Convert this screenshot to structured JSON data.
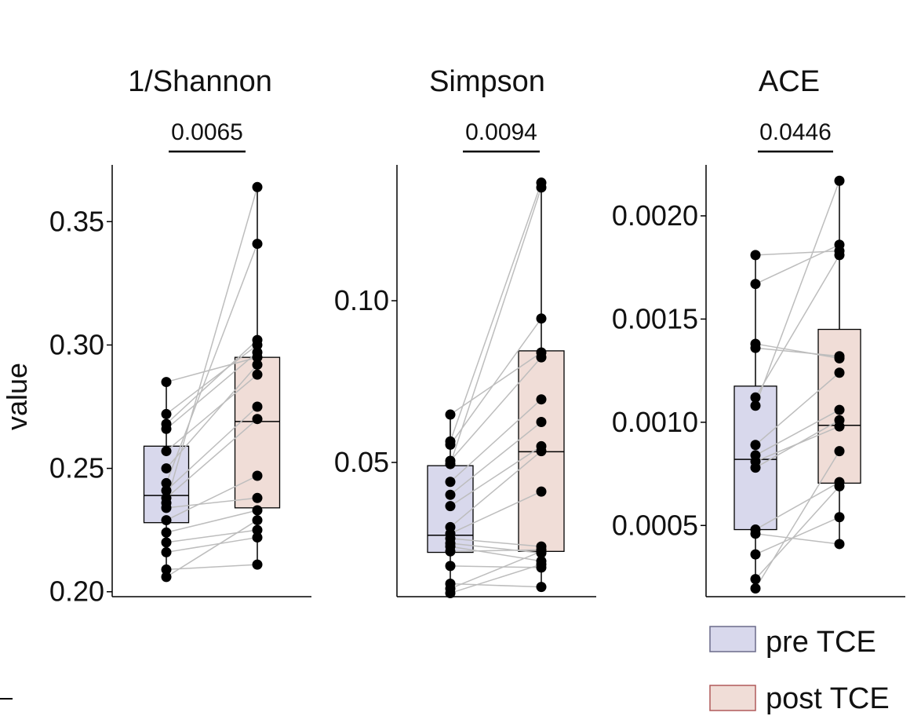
{
  "chart_data": {
    "type": "box",
    "ylabel": "value",
    "legend": {
      "placement": "bottom-right",
      "entries": [
        {
          "label": "pre TCE",
          "fill": "#d8d8ec",
          "stroke": "#6a6a8a"
        },
        {
          "label": "post TCE",
          "fill": "#f0ddd7",
          "stroke": "#b05a5a"
        }
      ]
    },
    "colors": {
      "pre_fill": "#d8d8ec",
      "post_fill": "#f0ddd7",
      "points": "#000000",
      "pair_lines": "#bdbdbd"
    },
    "panels": [
      {
        "id": "shannon",
        "title": "1/Shannon",
        "p_value": "0.0065",
        "ylim": [
          0.198,
          0.373
        ],
        "ticks": [
          0.2,
          0.25,
          0.3,
          0.35
        ],
        "tick_labels": [
          "0.20",
          "0.25",
          "0.30",
          "0.35"
        ],
        "groups": {
          "pre": {
            "min": 0.206,
            "q1": 0.228,
            "median": 0.239,
            "q3": 0.259,
            "max": 0.285
          },
          "post": {
            "min": 0.211,
            "q1": 0.234,
            "median": 0.269,
            "q3": 0.295,
            "max": 0.364
          }
        },
        "pairs": [
          [
            0.285,
            0.295
          ],
          [
            0.272,
            0.3
          ],
          [
            0.268,
            0.302
          ],
          [
            0.266,
            0.297
          ],
          [
            0.257,
            0.288
          ],
          [
            0.25,
            0.292
          ],
          [
            0.244,
            0.341
          ],
          [
            0.241,
            0.275
          ],
          [
            0.238,
            0.27
          ],
          [
            0.236,
            0.364
          ],
          [
            0.234,
            0.238
          ],
          [
            0.229,
            0.247
          ],
          [
            0.224,
            0.233
          ],
          [
            0.22,
            0.225
          ],
          [
            0.216,
            0.222
          ],
          [
            0.209,
            0.211
          ],
          [
            0.206,
            0.229
          ]
        ]
      },
      {
        "id": "simpson",
        "title": "Simpson",
        "p_value": "0.0094",
        "ylim": [
          0.0085,
          0.142
        ],
        "ticks": [
          0.05,
          0.1
        ],
        "tick_labels": [
          "0.05",
          "0.10"
        ],
        "groups": {
          "pre": {
            "min": 0.0096,
            "q1": 0.0222,
            "median": 0.0275,
            "q3": 0.049,
            "max": 0.0648
          },
          "post": {
            "min": 0.0115,
            "q1": 0.0225,
            "median": 0.0533,
            "q3": 0.0845,
            "max": 0.1365
          }
        },
        "pairs": [
          [
            0.0648,
            0.084
          ],
          [
            0.0565,
            0.1365
          ],
          [
            0.0555,
            0.0945
          ],
          [
            0.0505,
            0.0825
          ],
          [
            0.0495,
            0.135
          ],
          [
            0.044,
            0.0695
          ],
          [
            0.04,
            0.0625
          ],
          [
            0.0365,
            0.055
          ],
          [
            0.03,
            0.0535
          ],
          [
            0.028,
            0.041
          ],
          [
            0.0265,
            0.024
          ],
          [
            0.025,
            0.022
          ],
          [
            0.024,
            0.0195
          ],
          [
            0.0225,
            0.023
          ],
          [
            0.018,
            0.0175
          ],
          [
            0.0125,
            0.0115
          ],
          [
            0.011,
            0.0225
          ],
          [
            0.0096,
            0.0185
          ]
        ]
      },
      {
        "id": "ace",
        "title": "ACE",
        "p_value": "0.0446",
        "ylim": [
          0.000155,
          0.002247
        ],
        "ticks": [
          0.0005,
          0.001,
          0.0015,
          0.002
        ],
        "tick_labels": [
          "0.0005",
          "0.0010",
          "0.0015",
          "0.0020"
        ],
        "groups": {
          "pre": {
            "min": 0.000195,
            "q1": 0.00048,
            "median": 0.00082,
            "q3": 0.001175,
            "max": 0.00181
          },
          "post": {
            "min": 0.00041,
            "q1": 0.000705,
            "median": 0.000985,
            "q3": 0.00145,
            "max": 0.00217
          }
        },
        "pairs": [
          [
            0.00181,
            0.00183
          ],
          [
            0.00167,
            0.00186
          ],
          [
            0.00138,
            0.00131
          ],
          [
            0.00136,
            0.00132
          ],
          [
            0.00112,
            0.00181
          ],
          [
            0.00108,
            0.00217
          ],
          [
            0.00089,
            0.00124
          ],
          [
            0.00084,
            0.00106
          ],
          [
            0.00081,
            0.00098
          ],
          [
            0.00078,
            0.00101
          ],
          [
            0.00048,
            0.00071
          ],
          [
            0.00046,
            0.00041
          ],
          [
            0.00036,
            0.00054
          ],
          [
            0.00024,
            0.00069
          ],
          [
            0.000195,
            0.00086
          ]
        ]
      }
    ]
  }
}
